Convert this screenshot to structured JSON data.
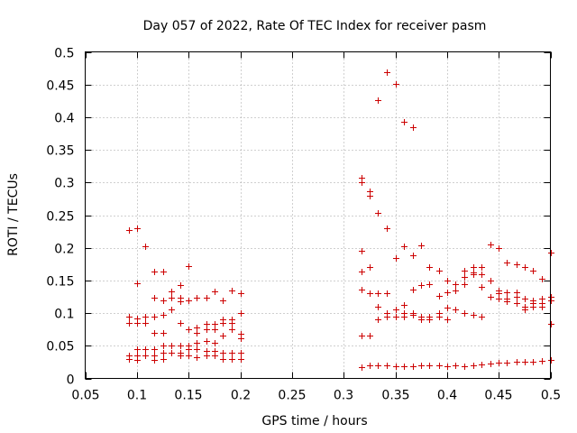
{
  "chart_data": {
    "type": "scatter",
    "title": "Day 057 of 2022, Rate Of TEC Index for receiver pasm",
    "xlabel": "GPS time / hours",
    "ylabel": "ROTI / TECUs",
    "xlim": [
      0.05,
      0.5
    ],
    "ylim": [
      0,
      0.5
    ],
    "xticks": [
      0.05,
      0.1,
      0.15,
      0.2,
      0.25,
      0.3,
      0.35,
      0.4,
      0.45,
      0.5
    ],
    "yticks": [
      0,
      0.05,
      0.1,
      0.15,
      0.2,
      0.25,
      0.3,
      0.35,
      0.4,
      0.45,
      0.5
    ],
    "xtick_labels": [
      "0.05",
      "0.1",
      "0.15",
      "0.2",
      "0.25",
      "0.3",
      "0.35",
      "0.4",
      "0.45",
      "0.5"
    ],
    "ytick_labels": [
      "0",
      "0.05",
      "0.1",
      "0.15",
      "0.2",
      "0.25",
      "0.3",
      "0.35",
      "0.4",
      "0.45",
      "0.5"
    ],
    "grid": true,
    "marker": "+",
    "color": "#cc0000",
    "series": [
      {
        "name": "ROTI",
        "points": [
          [
            0.092,
            0.227
          ],
          [
            0.092,
            0.095
          ],
          [
            0.092,
            0.085
          ],
          [
            0.092,
            0.035
          ],
          [
            0.092,
            0.03
          ],
          [
            0.1,
            0.23
          ],
          [
            0.1,
            0.146
          ],
          [
            0.1,
            0.092
          ],
          [
            0.1,
            0.085
          ],
          [
            0.1,
            0.045
          ],
          [
            0.1,
            0.035
          ],
          [
            0.1,
            0.028
          ],
          [
            0.108,
            0.203
          ],
          [
            0.108,
            0.095
          ],
          [
            0.108,
            0.085
          ],
          [
            0.108,
            0.045
          ],
          [
            0.108,
            0.035
          ],
          [
            0.117,
            0.163
          ],
          [
            0.117,
            0.123
          ],
          [
            0.117,
            0.095
          ],
          [
            0.117,
            0.07
          ],
          [
            0.117,
            0.045
          ],
          [
            0.117,
            0.035
          ],
          [
            0.117,
            0.028
          ],
          [
            0.125,
            0.163
          ],
          [
            0.125,
            0.12
          ],
          [
            0.125,
            0.098
          ],
          [
            0.125,
            0.07
          ],
          [
            0.125,
            0.05
          ],
          [
            0.125,
            0.04
          ],
          [
            0.125,
            0.03
          ],
          [
            0.133,
            0.133
          ],
          [
            0.133,
            0.123
          ],
          [
            0.133,
            0.105
          ],
          [
            0.133,
            0.05
          ],
          [
            0.133,
            0.04
          ],
          [
            0.142,
            0.143
          ],
          [
            0.142,
            0.123
          ],
          [
            0.142,
            0.118
          ],
          [
            0.142,
            0.085
          ],
          [
            0.142,
            0.05
          ],
          [
            0.142,
            0.04
          ],
          [
            0.142,
            0.035
          ],
          [
            0.15,
            0.172
          ],
          [
            0.15,
            0.12
          ],
          [
            0.15,
            0.075
          ],
          [
            0.15,
            0.05
          ],
          [
            0.15,
            0.045
          ],
          [
            0.15,
            0.035
          ],
          [
            0.158,
            0.123
          ],
          [
            0.158,
            0.078
          ],
          [
            0.158,
            0.07
          ],
          [
            0.158,
            0.055
          ],
          [
            0.158,
            0.045
          ],
          [
            0.158,
            0.033
          ],
          [
            0.167,
            0.123
          ],
          [
            0.167,
            0.083
          ],
          [
            0.167,
            0.075
          ],
          [
            0.167,
            0.057
          ],
          [
            0.167,
            0.042
          ],
          [
            0.167,
            0.035
          ],
          [
            0.175,
            0.133
          ],
          [
            0.175,
            0.083
          ],
          [
            0.175,
            0.075
          ],
          [
            0.175,
            0.055
          ],
          [
            0.175,
            0.042
          ],
          [
            0.175,
            0.035
          ],
          [
            0.183,
            0.12
          ],
          [
            0.183,
            0.09
          ],
          [
            0.183,
            0.085
          ],
          [
            0.183,
            0.065
          ],
          [
            0.183,
            0.04
          ],
          [
            0.183,
            0.03
          ],
          [
            0.192,
            0.135
          ],
          [
            0.192,
            0.09
          ],
          [
            0.192,
            0.085
          ],
          [
            0.192,
            0.075
          ],
          [
            0.192,
            0.04
          ],
          [
            0.192,
            0.03
          ],
          [
            0.2,
            0.13
          ],
          [
            0.2,
            0.1
          ],
          [
            0.2,
            0.068
          ],
          [
            0.2,
            0.062
          ],
          [
            0.2,
            0.04
          ],
          [
            0.2,
            0.03
          ],
          [
            0.317,
            0.307
          ],
          [
            0.317,
            0.3
          ],
          [
            0.317,
            0.196
          ],
          [
            0.317,
            0.163
          ],
          [
            0.317,
            0.136
          ],
          [
            0.317,
            0.066
          ],
          [
            0.317,
            0.017
          ],
          [
            0.325,
            0.286
          ],
          [
            0.325,
            0.28
          ],
          [
            0.325,
            0.17
          ],
          [
            0.325,
            0.13
          ],
          [
            0.325,
            0.066
          ],
          [
            0.325,
            0.02
          ],
          [
            0.333,
            0.426
          ],
          [
            0.333,
            0.254
          ],
          [
            0.333,
            0.13
          ],
          [
            0.333,
            0.11
          ],
          [
            0.333,
            0.09
          ],
          [
            0.333,
            0.02
          ],
          [
            0.342,
            0.469
          ],
          [
            0.342,
            0.23
          ],
          [
            0.342,
            0.13
          ],
          [
            0.342,
            0.1
          ],
          [
            0.342,
            0.095
          ],
          [
            0.342,
            0.02
          ],
          [
            0.35,
            0.451
          ],
          [
            0.35,
            0.184
          ],
          [
            0.35,
            0.105
          ],
          [
            0.35,
            0.095
          ],
          [
            0.35,
            0.018
          ],
          [
            0.358,
            0.393
          ],
          [
            0.358,
            0.202
          ],
          [
            0.358,
            0.113
          ],
          [
            0.358,
            0.1
          ],
          [
            0.358,
            0.095
          ],
          [
            0.358,
            0.018
          ],
          [
            0.367,
            0.384
          ],
          [
            0.367,
            0.188
          ],
          [
            0.367,
            0.136
          ],
          [
            0.367,
            0.1
          ],
          [
            0.367,
            0.098
          ],
          [
            0.367,
            0.018
          ],
          [
            0.375,
            0.204
          ],
          [
            0.375,
            0.143
          ],
          [
            0.375,
            0.095
          ],
          [
            0.375,
            0.09
          ],
          [
            0.375,
            0.02
          ],
          [
            0.383,
            0.17
          ],
          [
            0.383,
            0.145
          ],
          [
            0.383,
            0.095
          ],
          [
            0.383,
            0.09
          ],
          [
            0.383,
            0.02
          ],
          [
            0.392,
            0.165
          ],
          [
            0.392,
            0.126
          ],
          [
            0.392,
            0.1
          ],
          [
            0.392,
            0.095
          ],
          [
            0.392,
            0.02
          ],
          [
            0.4,
            0.15
          ],
          [
            0.4,
            0.132
          ],
          [
            0.4,
            0.108
          ],
          [
            0.4,
            0.09
          ],
          [
            0.4,
            0.018
          ],
          [
            0.408,
            0.145
          ],
          [
            0.408,
            0.135
          ],
          [
            0.408,
            0.106
          ],
          [
            0.408,
            0.02
          ],
          [
            0.417,
            0.165
          ],
          [
            0.417,
            0.155
          ],
          [
            0.417,
            0.145
          ],
          [
            0.417,
            0.1
          ],
          [
            0.417,
            0.018
          ],
          [
            0.425,
            0.17
          ],
          [
            0.425,
            0.162
          ],
          [
            0.425,
            0.16
          ],
          [
            0.425,
            0.098
          ],
          [
            0.425,
            0.02
          ],
          [
            0.433,
            0.17
          ],
          [
            0.433,
            0.16
          ],
          [
            0.433,
            0.14
          ],
          [
            0.433,
            0.095
          ],
          [
            0.433,
            0.022
          ],
          [
            0.442,
            0.205
          ],
          [
            0.442,
            0.15
          ],
          [
            0.442,
            0.125
          ],
          [
            0.442,
            0.023
          ],
          [
            0.45,
            0.2
          ],
          [
            0.45,
            0.135
          ],
          [
            0.45,
            0.13
          ],
          [
            0.45,
            0.122
          ],
          [
            0.45,
            0.024
          ],
          [
            0.458,
            0.178
          ],
          [
            0.458,
            0.132
          ],
          [
            0.458,
            0.122
          ],
          [
            0.458,
            0.118
          ],
          [
            0.458,
            0.024
          ],
          [
            0.467,
            0.175
          ],
          [
            0.467,
            0.132
          ],
          [
            0.467,
            0.125
          ],
          [
            0.467,
            0.115
          ],
          [
            0.467,
            0.025
          ],
          [
            0.475,
            0.17
          ],
          [
            0.475,
            0.122
          ],
          [
            0.475,
            0.11
          ],
          [
            0.475,
            0.105
          ],
          [
            0.475,
            0.026
          ],
          [
            0.483,
            0.165
          ],
          [
            0.483,
            0.12
          ],
          [
            0.483,
            0.115
          ],
          [
            0.483,
            0.11
          ],
          [
            0.483,
            0.026
          ],
          [
            0.492,
            0.153
          ],
          [
            0.492,
            0.122
          ],
          [
            0.492,
            0.115
          ],
          [
            0.492,
            0.11
          ],
          [
            0.492,
            0.027
          ],
          [
            0.5,
            0.192
          ],
          [
            0.5,
            0.125
          ],
          [
            0.5,
            0.12
          ],
          [
            0.5,
            0.083
          ],
          [
            0.5,
            0.029
          ]
        ]
      }
    ]
  }
}
